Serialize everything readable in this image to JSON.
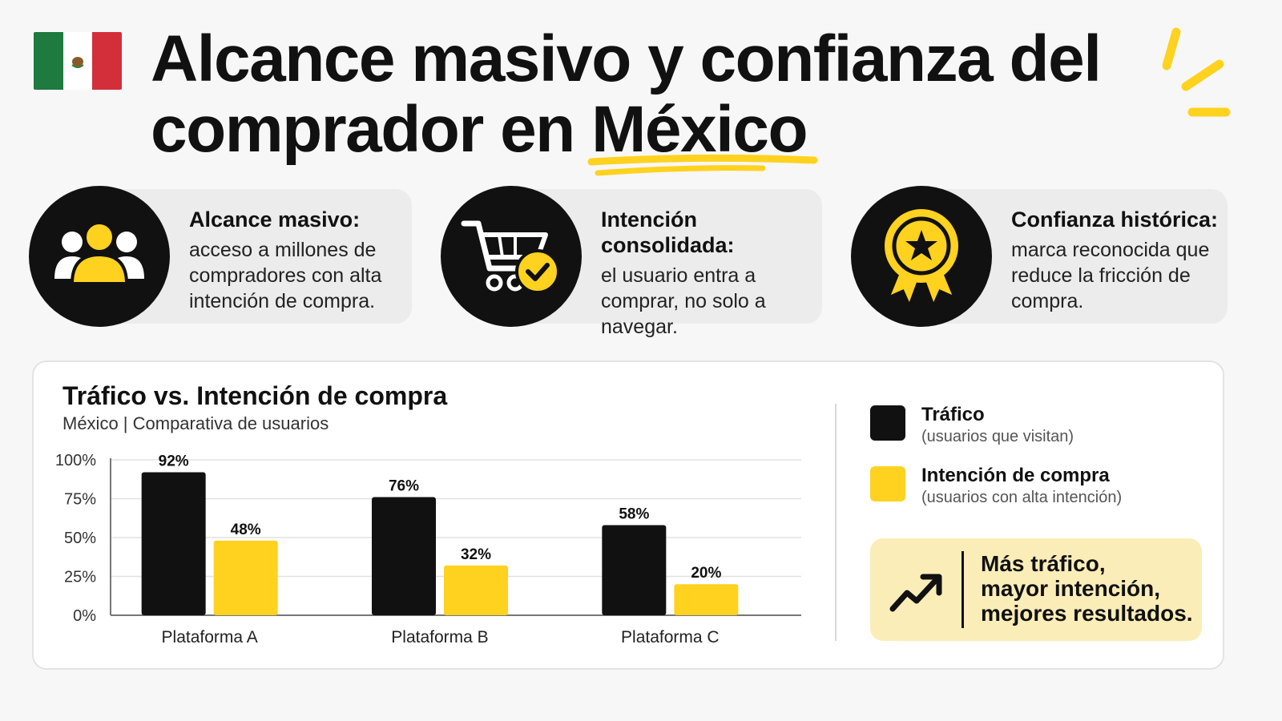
{
  "header": {
    "title_part1": "Alcance masivo y confianza del comprador en ",
    "title_highlight": "México",
    "flag_icon": "mexico-flag-icon"
  },
  "colors": {
    "accent": "#ffd21f",
    "dark": "#111111",
    "light_panel": "#ececec",
    "callout_bg": "#fbedb8"
  },
  "features": [
    {
      "icon": "people-group-icon",
      "heading": "Alcance masivo:",
      "text": "acceso a millones de compradores con alta intención de compra."
    },
    {
      "icon": "shopping-cart-check-icon",
      "heading": "Intención consolidada:",
      "text": "el usuario entra a comprar, no solo a navegar."
    },
    {
      "icon": "award-badge-icon",
      "heading": "Confianza histórica:",
      "text": "marca reconocida que reduce la fricción de compra."
    }
  ],
  "chart_data": {
    "type": "bar",
    "title": "Tráfico vs. Intención de compra",
    "subtitle": "México | Comparativa de usuarios",
    "categories": [
      "Plataforma A",
      "Plataforma B",
      "Plataforma C"
    ],
    "series": [
      {
        "name": "Tráfico",
        "description": "(usuarios que visitan)",
        "color": "#111111",
        "values": [
          92,
          76,
          58
        ]
      },
      {
        "name": "Intención de compra",
        "description": "(usuarios con alta intención)",
        "color": "#ffd21f",
        "values": [
          48,
          32,
          20
        ]
      }
    ],
    "yticks": [
      0,
      25,
      50,
      75,
      100
    ],
    "ylim": [
      0,
      100
    ],
    "value_suffix": "%",
    "grid": true,
    "legend_position": "right"
  },
  "callout": {
    "icon": "trending-up-arrow-icon",
    "lines": [
      "Más tráfico,",
      "mayor intención,",
      "mejores resultados."
    ]
  }
}
